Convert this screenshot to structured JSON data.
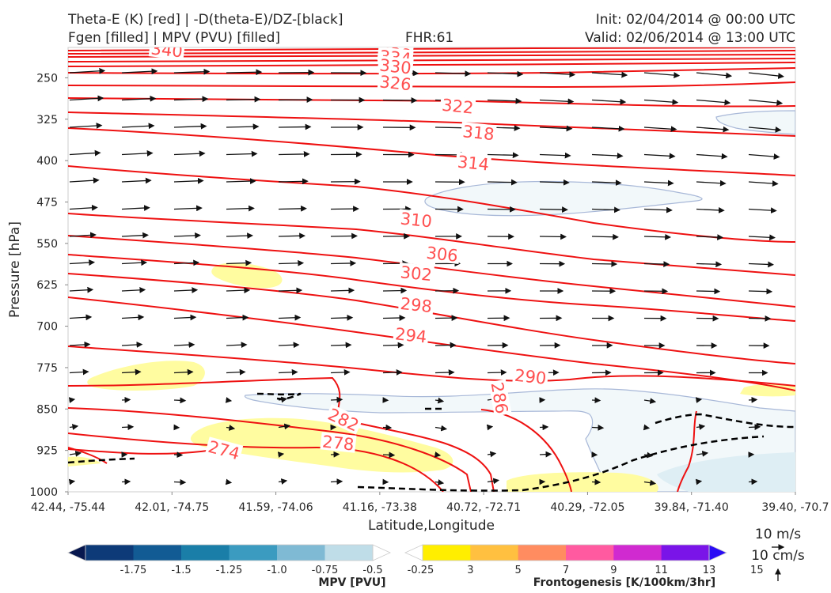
{
  "header": {
    "title_line1": "Theta-E (K) [red] | -D(theta-E)/DZ-[black]",
    "title_line2": "Fgen [filled] | MPV (PVU) [filled]",
    "fhr": "FHR:61",
    "init": "Init: 02/04/2014 @ 00:00 UTC",
    "valid": "Valid: 02/06/2014 @ 13:00 UTC"
  },
  "chart_data": {
    "type": "cross-section",
    "xlabel": "Latitude,Longitude",
    "ylabel": "Pressure [hPa]",
    "y_ticks": [
      "250",
      "325",
      "400",
      "475",
      "550",
      "625",
      "700",
      "775",
      "850",
      "925",
      "1000"
    ],
    "x_ticks": [
      "42.44, -75.44",
      "42.01, -74.75",
      "41.59, -74.06",
      "41.16, -73.38",
      "40.72, -72.71",
      "40.29, -72.05",
      "39.84, -71.40",
      "39.40, -70.7"
    ],
    "pressure_range": [
      1000,
      195
    ],
    "theta_e_contour_labels": [
      {
        "value": "340",
        "x_index": 0.95,
        "p": 200
      },
      {
        "value": "338",
        "x_index": 3.15,
        "p": 207
      },
      {
        "value": "334",
        "x_index": 3.15,
        "p": 214
      },
      {
        "value": "330",
        "x_index": 3.15,
        "p": 230
      },
      {
        "value": "326",
        "x_index": 3.15,
        "p": 260
      },
      {
        "value": "322",
        "x_index": 3.75,
        "p": 302
      },
      {
        "value": "318",
        "x_index": 3.95,
        "p": 350
      },
      {
        "value": "314",
        "x_index": 3.9,
        "p": 405
      },
      {
        "value": "310",
        "x_index": 3.35,
        "p": 508
      },
      {
        "value": "306",
        "x_index": 3.6,
        "p": 570
      },
      {
        "value": "302",
        "x_index": 3.35,
        "p": 605
      },
      {
        "value": "298",
        "x_index": 3.35,
        "p": 662
      },
      {
        "value": "294",
        "x_index": 3.3,
        "p": 717
      },
      {
        "value": "290",
        "x_index": 4.45,
        "p": 792
      },
      {
        "value": "286",
        "x_index": 4.15,
        "p": 830
      },
      {
        "value": "282",
        "x_index": 2.65,
        "p": 870
      },
      {
        "value": "278",
        "x_index": 2.6,
        "p": 912
      },
      {
        "value": "274",
        "x_index": 1.5,
        "p": 925
      }
    ],
    "mpv_colorbar": {
      "title": "MPV [PVU]",
      "levels": [
        "-1.75",
        "-1.5",
        "-1.25",
        "-1.0",
        "-0.75",
        "-0.5",
        "-0.25"
      ],
      "colors": [
        "#08184f",
        "#0d3a78",
        "#125b94",
        "#1a7ea8",
        "#3b9bc0",
        "#7fbad4",
        "#bfdde8",
        "#ffffff"
      ]
    },
    "fgen_colorbar": {
      "title": "Frontogenesis [K/100km/3hr]",
      "levels": [
        "3",
        "5",
        "7",
        "9",
        "11",
        "13",
        "15"
      ],
      "colors": [
        "#ffffff",
        "#ffee00",
        "#ffc040",
        "#ff8c60",
        "#ff5aa0",
        "#d02ad0",
        "#7a14e8",
        "#2a0cf5"
      ]
    },
    "vector_reference": {
      "horizontal": "10 m/s",
      "vertical": "10 cm/s"
    }
  }
}
